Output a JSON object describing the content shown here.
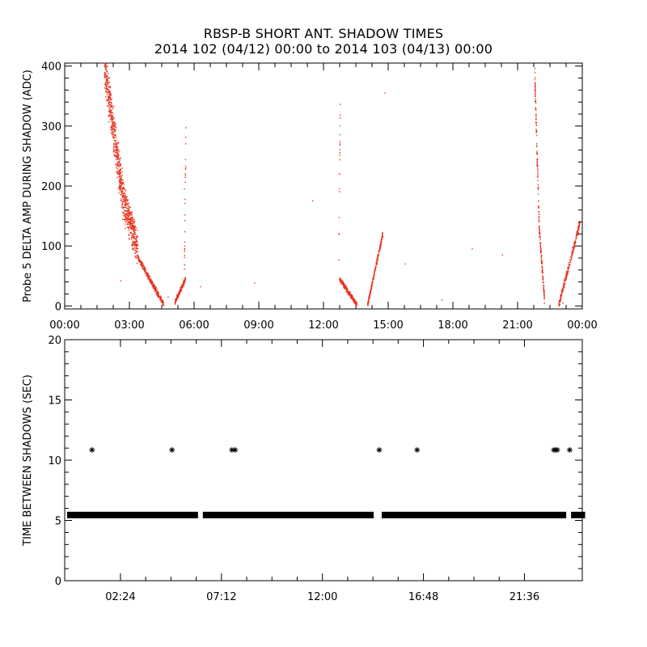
{
  "title": "RBSP-B SHORT ANT. SHADOW TIMES",
  "subtitle": "2014 102 (04/12) 00:00 to 2014 103 (04/13) 00:00",
  "colors": {
    "amp_points": "#e8321e",
    "gap_points": "#000000",
    "axes": "#000000",
    "background": "#ffffff"
  },
  "chart_data": [
    {
      "type": "scatter",
      "name": "top",
      "ylabel": "Probe 5 DELTA AMP DURING SHADOW (ADC)",
      "xlabel": "",
      "xlim": [
        0,
        24
      ],
      "ylim": [
        -5,
        405
      ],
      "xticks": [
        0,
        3,
        6,
        9,
        12,
        15,
        18,
        21,
        24
      ],
      "xtick_labels": [
        "00:00",
        "03:00",
        "06:00",
        "09:00",
        "12:00",
        "15:00",
        "18:00",
        "21:00",
        "00:00"
      ],
      "yticks": [
        0,
        100,
        200,
        300,
        400
      ],
      "ytick_labels": [
        "0",
        "100",
        "200",
        "300",
        "400"
      ],
      "points_color": "#e8321e",
      "segments": [
        {
          "x_start": 1.85,
          "x_end": 2.75,
          "y_start": 400,
          "y_end": 170,
          "spread": 45,
          "n": 520
        },
        {
          "x_start": 2.75,
          "x_end": 3.4,
          "y_start": 170,
          "y_end": 95,
          "spread": 35,
          "n": 260
        },
        {
          "x_start": 2.8,
          "x_end": 3.2,
          "y_start": 175,
          "y_end": 125,
          "spread": 25,
          "n": 70
        },
        {
          "x_start": 3.4,
          "x_end": 4.6,
          "y_start": 80,
          "y_end": 2,
          "spread": 6,
          "n": 260
        },
        {
          "x_start": 5.1,
          "x_end": 5.6,
          "y_start": 5,
          "y_end": 45,
          "spread": 5,
          "n": 160
        },
        {
          "x_start": 5.55,
          "x_end": 5.62,
          "y_start": 50,
          "y_end": 300,
          "spread": 8,
          "n": 25
        },
        {
          "x_start": 12.75,
          "x_end": 13.55,
          "y_start": 45,
          "y_end": 2,
          "spread": 5,
          "n": 230
        },
        {
          "x_start": 12.7,
          "x_end": 12.78,
          "y_start": 50,
          "y_end": 340,
          "spread": 10,
          "n": 20
        },
        {
          "x_start": 14.05,
          "x_end": 14.75,
          "y_start": 2,
          "y_end": 120,
          "spread": 5,
          "n": 230
        },
        {
          "x_start": 21.8,
          "x_end": 22.0,
          "y_start": 380,
          "y_end": 140,
          "spread": 25,
          "n": 110
        },
        {
          "x_start": 22.0,
          "x_end": 22.25,
          "y_start": 130,
          "y_end": 10,
          "spread": 10,
          "n": 110
        },
        {
          "x_start": 22.9,
          "x_end": 23.9,
          "y_start": 0,
          "y_end": 140,
          "spread": 8,
          "n": 220
        }
      ],
      "isolated_points": [
        [
          2.6,
          42
        ],
        [
          6.3,
          32
        ],
        [
          8.8,
          38
        ],
        [
          11.5,
          175
        ],
        [
          15.8,
          70
        ],
        [
          17.5,
          10
        ],
        [
          18.9,
          95
        ],
        [
          20.3,
          85
        ],
        [
          4.8,
          15
        ],
        [
          5.55,
          195
        ],
        [
          5.62,
          230
        ],
        [
          14.85,
          355
        ],
        [
          23.1,
          5
        ]
      ]
    },
    {
      "type": "scatter",
      "name": "bottom",
      "ylabel": "TIME BETWEEN SHADOWS (SEC)",
      "xlabel": "",
      "xlim": [
        -0.25,
        24.35
      ],
      "ylim": [
        0,
        20
      ],
      "xticks": [
        2.4,
        7.2,
        12.0,
        16.8,
        21.6
      ],
      "xtick_labels": [
        "02:24",
        "07:12",
        "12:00",
        "16:48",
        "21:36"
      ],
      "yticks": [
        0,
        5,
        10,
        15,
        20
      ],
      "ytick_labels": [
        "0",
        "5",
        "10",
        "15",
        "20"
      ],
      "marker": "asterisk",
      "points_color": "#000000",
      "baseline_y": 5.45,
      "baseline_ranges": [
        [
          0.0,
          5.95
        ],
        [
          6.45,
          14.3
        ],
        [
          14.95,
          23.45
        ],
        [
          23.95,
          24.35
        ]
      ],
      "outliers": [
        [
          1.05,
          10.85
        ],
        [
          4.85,
          10.85
        ],
        [
          7.7,
          10.85
        ],
        [
          7.85,
          10.85
        ],
        [
          14.7,
          10.85
        ],
        [
          16.5,
          10.85
        ],
        [
          23.0,
          10.85
        ],
        [
          23.08,
          10.85
        ],
        [
          23.16,
          10.85
        ],
        [
          23.75,
          10.85
        ]
      ]
    }
  ]
}
